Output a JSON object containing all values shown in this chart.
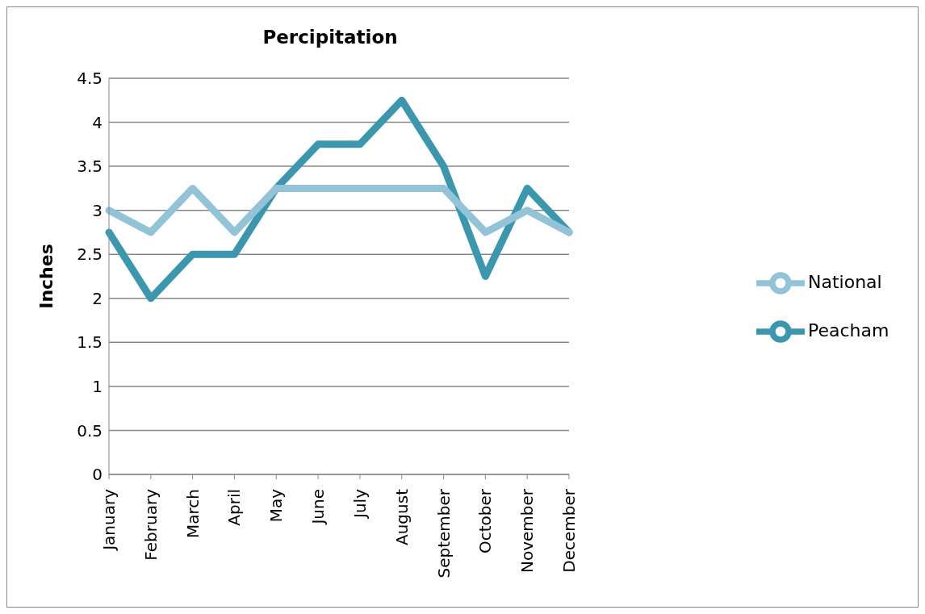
{
  "chart_data": {
    "type": "line",
    "title": "Percipitation",
    "ylabel": "Inches",
    "categories": [
      "January",
      "February",
      "March",
      "April",
      "May",
      "June",
      "July",
      "August",
      "September",
      "October",
      "November",
      "December"
    ],
    "series": [
      {
        "name": "Peacham",
        "color": "#3a97ae",
        "values": [
          2.75,
          2,
          2.5,
          2.5,
          3.25,
          3.75,
          3.75,
          4.25,
          3.5,
          2.25,
          3.25,
          2.75
        ]
      },
      {
        "name": "National",
        "color": "#92c3d6",
        "values": [
          3,
          2.75,
          3.25,
          2.75,
          3.25,
          3.25,
          3.25,
          3.25,
          3.25,
          2.75,
          3,
          2.75
        ]
      }
    ],
    "ylim": [
      0,
      4.5
    ],
    "yticks": [
      0,
      0.5,
      1,
      1.5,
      2,
      2.5,
      3,
      3.5,
      4,
      4.5
    ],
    "grid": "y",
    "legend": "right",
    "marker": "none",
    "line_style": "solid"
  }
}
